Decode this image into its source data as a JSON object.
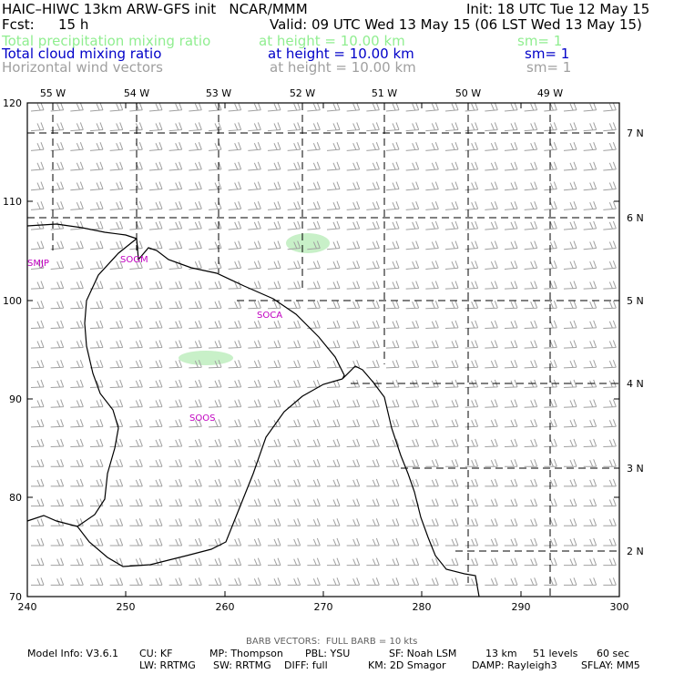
{
  "header": {
    "title": "HAIC–HIWC 13km ARW-GFS init   NCAR/MMM",
    "init": "Init: 18 UTC Tue 12 May 15",
    "fcst_label": "Fcst:",
    "fcst_value": "15 h",
    "valid": "Valid: 09 UTC Wed 13 May 15 (06 LST Wed 13 May 15)"
  },
  "fields": [
    {
      "name": "Total precipitation mixing ratio",
      "height": "at height = 10.00 km",
      "sm": "sm= 1",
      "color": "#90ee90"
    },
    {
      "name": "Total cloud mixing ratio",
      "height": "at height = 10.00 km",
      "sm": "sm= 1",
      "color": "#0000c8"
    },
    {
      "name": "Horizontal wind vectors",
      "height": "at height = 10.00 km",
      "sm": "sm= 1",
      "color": "#a0a0a0"
    }
  ],
  "map": {
    "x_ticks": [
      "240",
      "250",
      "260",
      "270",
      "280",
      "290",
      "300"
    ],
    "y_ticks": [
      "70",
      "80",
      "90",
      "100",
      "110",
      "120"
    ],
    "lon_labels": [
      "55 W",
      "54 W",
      "53 W",
      "52 W",
      "51 W",
      "50 W",
      "49 W"
    ],
    "lat_labels": [
      "7 N",
      "6 N",
      "5 N",
      "4 N",
      "3 N",
      "2 N"
    ],
    "stations": [
      "SMJP",
      "SOGM",
      "SOCA",
      "SOOS"
    ],
    "precip_color": "#c8f0c8",
    "station_color": "#c000c0"
  },
  "footer": {
    "barb_note": "BARB VECTORS:  FULL BARB = 10 kts",
    "line1": [
      "Model Info: V3.6.1",
      "CU: KF",
      "MP: Thompson",
      "PBL: YSU",
      "SF: Noah LSM",
      "13 km",
      "51 levels",
      "60 sec"
    ],
    "line2": [
      "LW: RRTMG",
      "SW: RRTMG",
      "DIFF: full",
      "KM: 2D Smagor",
      "DAMP: Rayleigh3",
      "SFLAY: MM5"
    ]
  }
}
